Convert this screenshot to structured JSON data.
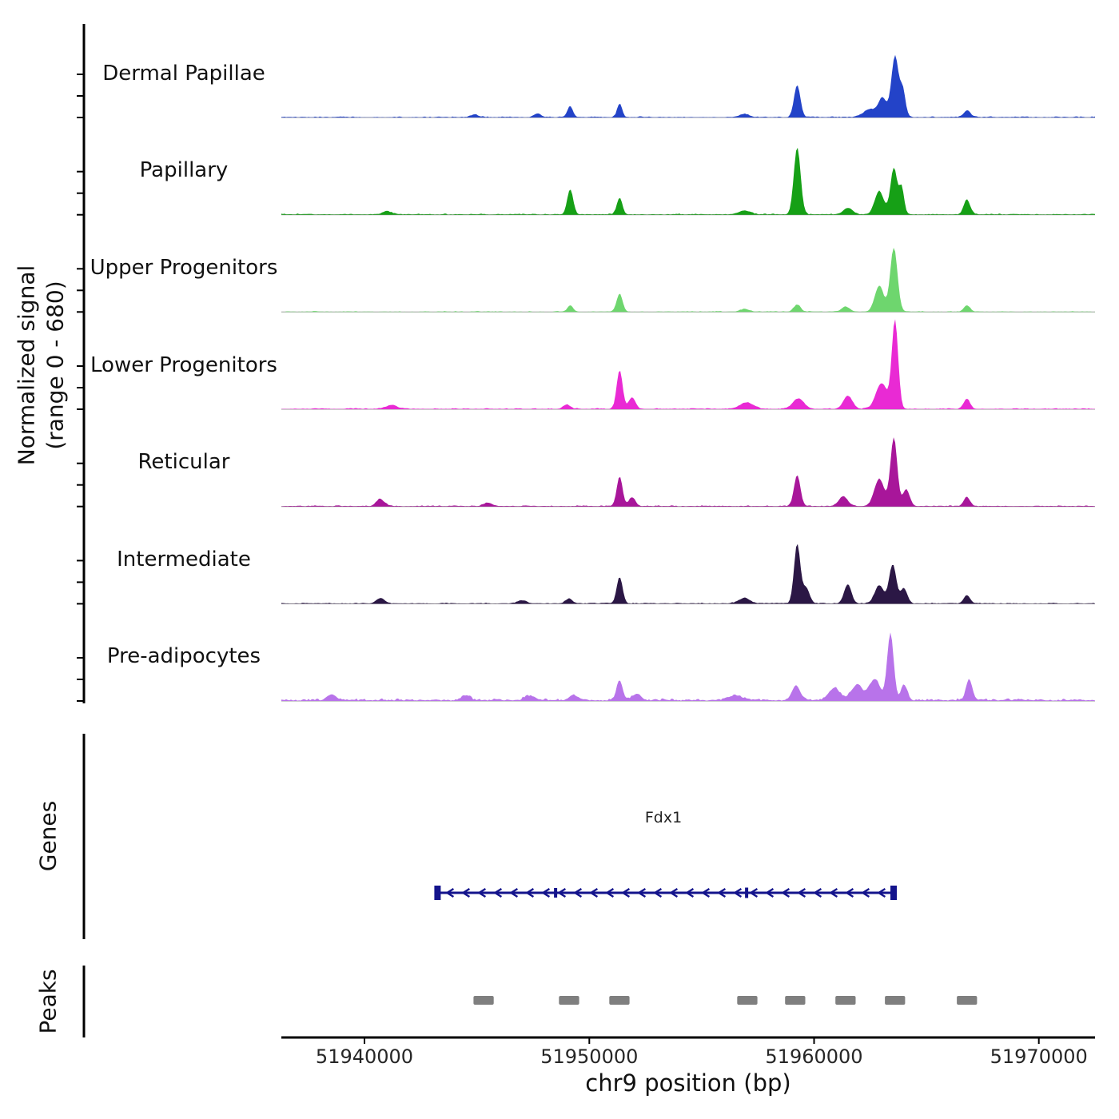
{
  "labels": {
    "ylabel_line1": "Normalized signal",
    "ylabel_line2": "(range 0 - 680)",
    "genes_axis": "Genes",
    "peaks_axis": "Peaks",
    "xlabel": "chr9 position (bp)"
  },
  "chart_data": {
    "type": "area",
    "title": "",
    "xlabel": "chr9 position (bp)",
    "ylabel": "Normalized signal (range 0 - 680)",
    "ylim": [
      0,
      680
    ],
    "chrom": "chr9",
    "x_domain": [
      51936300,
      51972500
    ],
    "x_ticks": [
      51940000,
      51950000,
      51960000,
      51970000
    ],
    "tracks": [
      {
        "name": "Dermal Papillae",
        "color": "#2343c8",
        "noise": 10,
        "peaks": [
          [
            51944900,
            22,
            150
          ],
          [
            51947700,
            30,
            150
          ],
          [
            51949150,
            85,
            120
          ],
          [
            51951350,
            105,
            110
          ],
          [
            51956900,
            25,
            220
          ],
          [
            51959250,
            245,
            140
          ],
          [
            51962500,
            60,
            300
          ],
          [
            51963050,
            140,
            180
          ],
          [
            51963600,
            470,
            160
          ],
          [
            51963950,
            200,
            120
          ],
          [
            51966800,
            50,
            150
          ]
        ]
      },
      {
        "name": "Papillary",
        "color": "#16a016",
        "noise": 10,
        "peaks": [
          [
            51941000,
            25,
            200
          ],
          [
            51949150,
            195,
            130
          ],
          [
            51951350,
            130,
            120
          ],
          [
            51956900,
            30,
            250
          ],
          [
            51959250,
            519,
            150
          ],
          [
            51961500,
            50,
            200
          ],
          [
            51962900,
            180,
            200
          ],
          [
            51963550,
            360,
            150
          ],
          [
            51963900,
            200,
            110
          ],
          [
            51966800,
            115,
            140
          ]
        ]
      },
      {
        "name": "Upper Progenitors",
        "color": "#6ed66e",
        "noise": 8,
        "peaks": [
          [
            51949150,
            50,
            120
          ],
          [
            51951350,
            140,
            130
          ],
          [
            51956900,
            20,
            200
          ],
          [
            51959250,
            55,
            150
          ],
          [
            51961400,
            40,
            180
          ],
          [
            51962900,
            200,
            200
          ],
          [
            51963550,
            494,
            160
          ],
          [
            51966800,
            50,
            140
          ]
        ]
      },
      {
        "name": "Lower Progenitors",
        "color": "#e92ad4",
        "noise": 10,
        "peaks": [
          [
            51941200,
            30,
            250
          ],
          [
            51949000,
            35,
            150
          ],
          [
            51951350,
            300,
            130
          ],
          [
            51951900,
            90,
            150
          ],
          [
            51957000,
            50,
            300
          ],
          [
            51959300,
            80,
            250
          ],
          [
            51961500,
            100,
            200
          ],
          [
            51963000,
            200,
            250
          ],
          [
            51963600,
            680,
            140
          ],
          [
            51966800,
            80,
            140
          ]
        ]
      },
      {
        "name": "Reticular",
        "color": "#a8169a",
        "noise": 10,
        "peaks": [
          [
            51940700,
            55,
            180
          ],
          [
            51945500,
            25,
            200
          ],
          [
            51951350,
            230,
            130
          ],
          [
            51951900,
            70,
            140
          ],
          [
            51959250,
            240,
            140
          ],
          [
            51961300,
            75,
            200
          ],
          [
            51962900,
            210,
            220
          ],
          [
            51963550,
            531,
            150
          ],
          [
            51964100,
            130,
            150
          ],
          [
            51966800,
            70,
            140
          ]
        ]
      },
      {
        "name": "Intermediate",
        "color": "#2b1745",
        "noise": 9,
        "peaks": [
          [
            51940700,
            40,
            180
          ],
          [
            51947000,
            25,
            200
          ],
          [
            51949100,
            40,
            140
          ],
          [
            51951350,
            205,
            130
          ],
          [
            51956900,
            40,
            250
          ],
          [
            51959250,
            457,
            140
          ],
          [
            51959650,
            120,
            150
          ],
          [
            51961500,
            150,
            160
          ],
          [
            51962900,
            140,
            200
          ],
          [
            51963500,
            300,
            160
          ],
          [
            51964000,
            115,
            140
          ],
          [
            51966800,
            65,
            140
          ]
        ]
      },
      {
        "name": "Pre-adipocytes",
        "color": "#b873ea",
        "noise": 22,
        "peaks": [
          [
            51938500,
            40,
            200
          ],
          [
            51944500,
            40,
            180
          ],
          [
            51947300,
            30,
            200
          ],
          [
            51949300,
            40,
            180
          ],
          [
            51951350,
            145,
            140
          ],
          [
            51952100,
            50,
            200
          ],
          [
            51956500,
            40,
            300
          ],
          [
            51959200,
            115,
            180
          ],
          [
            51960900,
            95,
            250
          ],
          [
            51961900,
            115,
            250
          ],
          [
            51962700,
            160,
            250
          ],
          [
            51963400,
            519,
            140
          ],
          [
            51964000,
            120,
            140
          ],
          [
            51966900,
            165,
            140
          ]
        ]
      }
    ],
    "gene": {
      "name": "Fdx1",
      "start": 51943250,
      "end": 51963540,
      "strand": "-",
      "color": "#14148c",
      "exon_marks": [
        {
          "bp": 51943250,
          "w": 8,
          "h": 18
        },
        {
          "bp": 51948500,
          "w": 4,
          "h": 12
        },
        {
          "bp": 51957000,
          "w": 4,
          "h": 13
        },
        {
          "bp": 51963540,
          "w": 8,
          "h": 18
        }
      ]
    },
    "peaks_color": "#7f7f7f",
    "peak_regions": [
      {
        "start": 51944850,
        "end": 51945750
      },
      {
        "start": 51948650,
        "end": 51949550
      },
      {
        "start": 51950890,
        "end": 51951790
      },
      {
        "start": 51956580,
        "end": 51957480
      },
      {
        "start": 51958710,
        "end": 51959610
      },
      {
        "start": 51960950,
        "end": 51961850
      },
      {
        "start": 51963150,
        "end": 51964050
      },
      {
        "start": 51966350,
        "end": 51967250
      }
    ]
  }
}
